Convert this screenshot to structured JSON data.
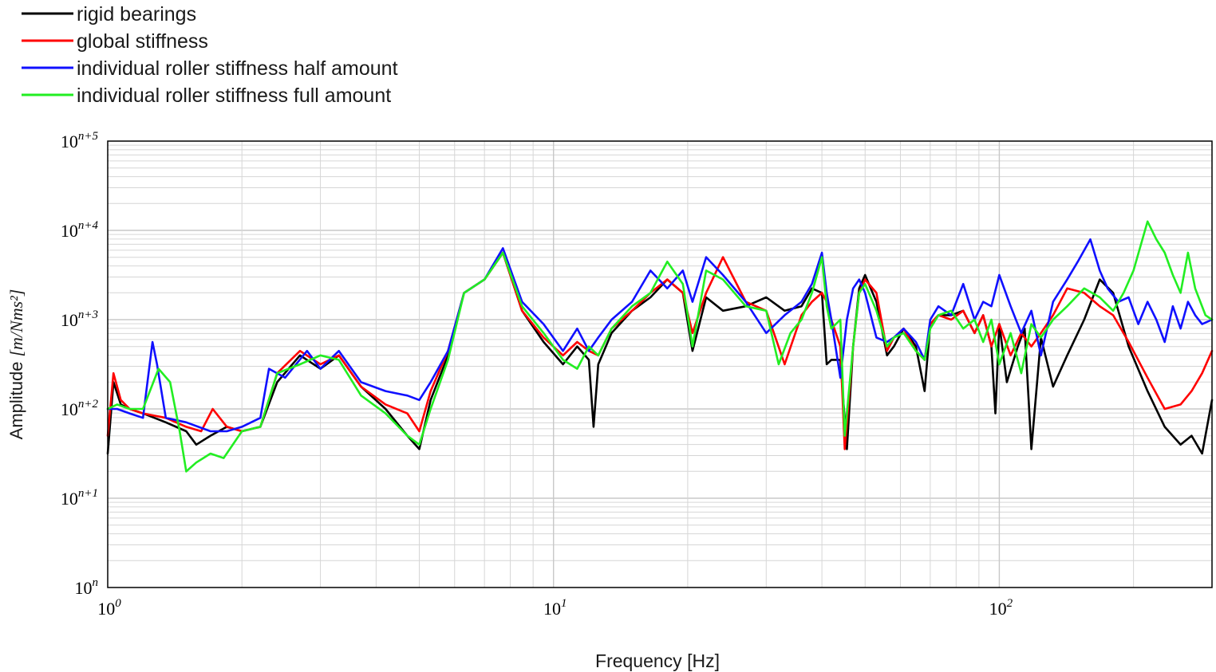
{
  "chart_data": {
    "type": "line",
    "title": "",
    "xlabel": "Frequency [Hz]",
    "ylabel": "Amplitude",
    "ylabel_unit": "[m/Nms²]",
    "x_scale": "log",
    "y_scale": "log",
    "xlim": [
      1,
      300
    ],
    "ylim_decades_offset": [
      0,
      5
    ],
    "x_ticks": [
      {
        "value": 1,
        "base": "10",
        "exp": "0"
      },
      {
        "value": 10,
        "base": "10",
        "exp": "1"
      },
      {
        "value": 100,
        "base": "10",
        "exp": "2"
      }
    ],
    "y_ticks": [
      {
        "value": 0,
        "base": "10",
        "exp": "n"
      },
      {
        "value": 1,
        "base": "10",
        "exp": "n+1"
      },
      {
        "value": 2,
        "base": "10",
        "exp": "n+2"
      },
      {
        "value": 3,
        "base": "10",
        "exp": "n+3"
      },
      {
        "value": 4,
        "base": "10",
        "exp": "n+4"
      },
      {
        "value": 5,
        "base": "10",
        "exp": "n+5"
      }
    ],
    "grid": true,
    "legend_position": "top-left, above plot",
    "series": [
      {
        "name": "rigid bearings",
        "color": "#000000",
        "x": [
          1.0,
          1.03,
          1.07,
          1.12,
          1.2,
          1.35,
          1.5,
          1.58,
          1.7,
          1.85,
          2.0,
          2.2,
          2.4,
          2.7,
          3.0,
          3.3,
          3.7,
          4.2,
          4.7,
          5.0,
          5.3,
          5.8,
          6.3,
          7.0,
          7.7,
          8.5,
          9.5,
          10.5,
          11.3,
          12.0,
          12.3,
          12.6,
          13.5,
          15.0,
          16.5,
          18.0,
          19.5,
          20.5,
          22.0,
          24.0,
          27.0,
          30.0,
          33.0,
          36.0,
          38.0,
          40.0,
          41.0,
          42.0,
          44.0,
          45.5,
          47.0,
          48.5,
          50.0,
          53.0,
          56.0,
          58.0,
          61.0,
          65.0,
          68.0,
          70.0,
          73.0,
          78.0,
          83.0,
          88.0,
          92.0,
          96.0,
          98.0,
          100.0,
          104.0,
          110.0,
          114.0,
          118.0,
          124.0,
          132.0,
          142.0,
          155.0,
          168.0,
          180.0,
          195.0,
          215.0,
          235.0,
          255.0,
          270.0,
          285.0,
          300.0
        ],
        "y": [
          1.5,
          2.3,
          2.05,
          2.0,
          1.95,
          1.85,
          1.75,
          1.6,
          1.7,
          1.8,
          1.75,
          1.8,
          2.3,
          2.6,
          2.45,
          2.6,
          2.25,
          2.0,
          1.7,
          1.55,
          2.1,
          2.6,
          3.3,
          3.45,
          3.75,
          3.1,
          2.75,
          2.5,
          2.7,
          2.55,
          1.8,
          2.5,
          2.85,
          3.1,
          3.25,
          3.45,
          3.3,
          2.65,
          3.25,
          3.1,
          3.15,
          3.25,
          3.1,
          3.15,
          3.35,
          3.3,
          2.5,
          2.55,
          2.55,
          1.55,
          2.7,
          3.35,
          3.5,
          3.2,
          2.6,
          2.7,
          2.9,
          2.7,
          2.2,
          2.95,
          3.05,
          3.05,
          3.1,
          2.85,
          3.05,
          2.7,
          1.95,
          2.95,
          2.3,
          2.7,
          2.9,
          1.55,
          2.8,
          2.25,
          2.6,
          3.0,
          3.45,
          3.3,
          2.7,
          2.2,
          1.8,
          1.6,
          1.7,
          1.5,
          2.1
        ]
      },
      {
        "name": "global stiffness",
        "color": "#ff0000",
        "x": [
          1.0,
          1.03,
          1.07,
          1.12,
          1.2,
          1.35,
          1.5,
          1.62,
          1.72,
          1.85,
          2.0,
          2.2,
          2.4,
          2.7,
          3.0,
          3.3,
          3.7,
          4.2,
          4.7,
          5.0,
          5.3,
          5.8,
          6.3,
          7.0,
          7.7,
          8.5,
          9.5,
          10.5,
          11.3,
          12.0,
          12.6,
          13.5,
          15.0,
          16.5,
          18.0,
          19.5,
          20.5,
          22.0,
          24.0,
          27.0,
          30.0,
          33.0,
          36.0,
          38.0,
          40.0,
          41.0,
          42.0,
          44.0,
          45.0,
          47.0,
          48.5,
          50.0,
          53.0,
          56.0,
          58.0,
          61.0,
          65.0,
          68.0,
          70.0,
          73.0,
          78.0,
          83.0,
          88.0,
          92.0,
          96.0,
          100.0,
          106.0,
          112.0,
          118.0,
          124.0,
          132.0,
          142.0,
          155.0,
          168.0,
          180.0,
          195.0,
          215.0,
          235.0,
          255.0,
          270.0,
          285.0,
          300.0
        ],
        "y": [
          1.7,
          2.4,
          2.1,
          2.0,
          1.95,
          1.9,
          1.8,
          1.75,
          2.0,
          1.8,
          1.75,
          1.8,
          2.4,
          2.65,
          2.5,
          2.6,
          2.25,
          2.05,
          1.95,
          1.75,
          2.2,
          2.65,
          3.3,
          3.45,
          3.75,
          3.1,
          2.8,
          2.6,
          2.75,
          2.65,
          2.6,
          2.9,
          3.1,
          3.3,
          3.45,
          3.3,
          2.85,
          3.3,
          3.7,
          3.2,
          3.1,
          2.5,
          3.05,
          3.2,
          3.3,
          3.2,
          3.0,
          2.7,
          1.55,
          2.7,
          3.3,
          3.45,
          3.3,
          2.65,
          2.8,
          2.9,
          2.65,
          2.55,
          2.95,
          3.05,
          3.0,
          3.1,
          2.85,
          3.05,
          2.7,
          2.95,
          2.6,
          2.85,
          2.7,
          2.85,
          3.05,
          3.35,
          3.3,
          3.15,
          3.05,
          2.75,
          2.35,
          2.0,
          2.05,
          2.2,
          2.4,
          2.65
        ]
      },
      {
        "name": "individual roller stiffness half amount",
        "color": "#1010ff",
        "x": [
          1.0,
          1.05,
          1.12,
          1.2,
          1.26,
          1.29,
          1.35,
          1.5,
          1.7,
          1.85,
          2.0,
          2.2,
          2.3,
          2.5,
          2.8,
          3.0,
          3.3,
          3.7,
          4.2,
          4.7,
          5.0,
          5.3,
          5.8,
          6.3,
          7.0,
          7.7,
          8.5,
          9.5,
          10.5,
          11.3,
          12.0,
          12.6,
          13.5,
          15.0,
          16.5,
          18.0,
          19.5,
          20.5,
          22.0,
          24.0,
          27.0,
          30.0,
          33.0,
          36.0,
          38.0,
          40.0,
          41.0,
          42.0,
          44.0,
          45.5,
          47.0,
          48.5,
          50.0,
          53.0,
          56.0,
          58.0,
          61.0,
          65.0,
          68.0,
          70.0,
          73.0,
          78.0,
          83.0,
          88.0,
          92.0,
          96.0,
          100.0,
          106.0,
          112.0,
          118.0,
          124.0,
          132.0,
          142.0,
          150.0,
          160.0,
          168.0,
          175.0,
          185.0,
          195.0,
          205.0,
          215.0,
          225.0,
          235.0,
          245.0,
          255.0,
          265.0,
          275.0,
          285.0,
          300.0
        ],
        "y": [
          2.0,
          2.0,
          1.95,
          1.9,
          2.75,
          2.5,
          1.9,
          1.85,
          1.75,
          1.75,
          1.8,
          1.9,
          2.45,
          2.35,
          2.65,
          2.45,
          2.65,
          2.3,
          2.2,
          2.15,
          2.1,
          2.3,
          2.65,
          3.3,
          3.45,
          3.8,
          3.2,
          2.95,
          2.65,
          2.9,
          2.65,
          2.8,
          3.0,
          3.2,
          3.55,
          3.35,
          3.55,
          3.2,
          3.7,
          3.5,
          3.2,
          2.85,
          3.05,
          3.2,
          3.4,
          3.75,
          3.3,
          3.0,
          2.35,
          3.0,
          3.35,
          3.45,
          3.3,
          2.8,
          2.75,
          2.8,
          2.9,
          2.75,
          2.55,
          3.0,
          3.15,
          3.05,
          3.4,
          3.0,
          3.2,
          3.15,
          3.5,
          3.15,
          2.85,
          3.1,
          2.6,
          3.2,
          3.45,
          3.65,
          3.9,
          3.55,
          3.35,
          3.2,
          3.25,
          2.95,
          3.2,
          3.0,
          2.75,
          3.15,
          2.9,
          3.2,
          3.05,
          2.95,
          3.0
        ]
      },
      {
        "name": "individual roller stiffness full amount",
        "color": "#22ee22",
        "x": [
          1.0,
          1.05,
          1.12,
          1.2,
          1.3,
          1.38,
          1.45,
          1.5,
          1.58,
          1.7,
          1.82,
          2.0,
          2.2,
          2.4,
          2.7,
          3.0,
          3.3,
          3.7,
          4.2,
          4.7,
          5.0,
          5.3,
          5.8,
          6.3,
          7.0,
          7.7,
          8.5,
          9.5,
          10.5,
          11.3,
          12.0,
          12.6,
          13.5,
          15.0,
          16.5,
          18.0,
          19.5,
          20.5,
          22.0,
          24.0,
          27.0,
          30.0,
          32.0,
          34.0,
          36.0,
          38.0,
          40.0,
          41.0,
          42.0,
          44.0,
          45.0,
          47.0,
          48.5,
          50.0,
          53.0,
          56.0,
          58.0,
          61.0,
          65.0,
          68.0,
          70.0,
          73.0,
          78.0,
          83.0,
          88.0,
          92.0,
          96.0,
          100.0,
          106.0,
          112.0,
          118.0,
          124.0,
          132.0,
          142.0,
          155.0,
          168.0,
          180.0,
          190.0,
          200.0,
          215.0,
          225.0,
          235.0,
          245.0,
          255.0,
          265.0,
          275.0,
          290.0,
          300.0
        ],
        "y": [
          2.0,
          2.05,
          2.0,
          2.0,
          2.45,
          2.3,
          1.75,
          1.3,
          1.4,
          1.5,
          1.45,
          1.75,
          1.8,
          2.4,
          2.5,
          2.6,
          2.55,
          2.15,
          1.95,
          1.7,
          1.6,
          2.0,
          2.55,
          3.3,
          3.45,
          3.75,
          3.15,
          2.85,
          2.55,
          2.45,
          2.7,
          2.6,
          2.9,
          3.15,
          3.3,
          3.65,
          3.4,
          2.7,
          3.55,
          3.45,
          3.15,
          3.1,
          2.5,
          2.85,
          3.0,
          3.3,
          3.7,
          3.15,
          2.9,
          3.0,
          1.7,
          2.7,
          3.3,
          3.4,
          3.1,
          2.7,
          2.8,
          2.85,
          2.65,
          2.55,
          2.9,
          3.05,
          3.1,
          2.9,
          3.0,
          2.75,
          3.0,
          2.5,
          2.85,
          2.4,
          2.95,
          2.8,
          3.0,
          3.15,
          3.35,
          3.25,
          3.1,
          3.3,
          3.55,
          4.1,
          3.9,
          3.75,
          3.5,
          3.3,
          3.75,
          3.35,
          3.05,
          3.0
        ]
      }
    ]
  }
}
